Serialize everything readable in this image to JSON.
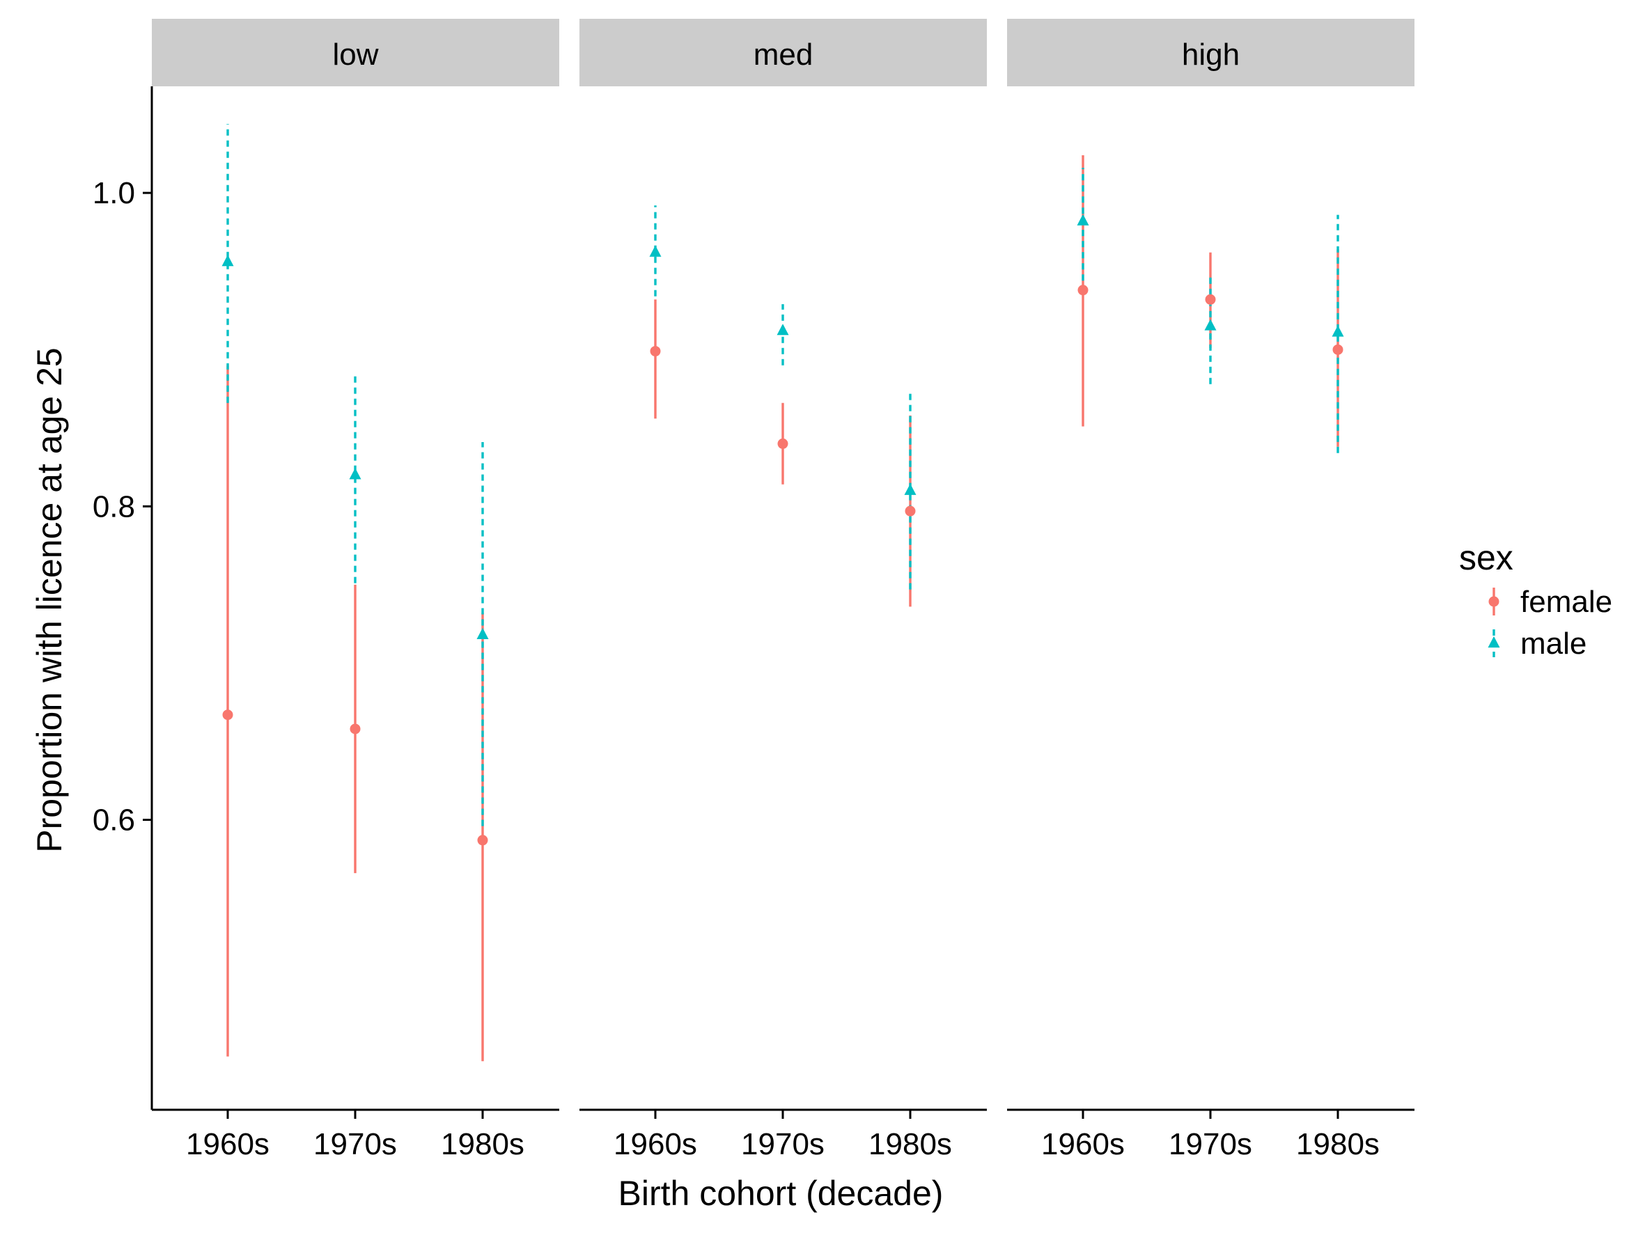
{
  "chart_data": {
    "type": "errorbar",
    "xlabel": "Birth cohort (decade)",
    "ylabel": "Proportion with licence at age 25",
    "ylim": [
      0.415,
      1.068
    ],
    "yticks": [
      "0.6",
      "0.8",
      "1.0"
    ],
    "categories": [
      "1960s",
      "1970s",
      "1980s"
    ],
    "grid": false,
    "legend": {
      "title": "sex",
      "placement": "right",
      "entries": [
        "female",
        "male"
      ]
    },
    "colors": {
      "female": "#F8766D",
      "male": "#00BFC4",
      "strip": "#CCCCCC"
    },
    "facets": [
      {
        "label": "low",
        "series": [
          {
            "name": "female",
            "marker": "circle",
            "line": "solid",
            "values": [
              0.667,
              0.658,
              0.587
            ],
            "lower": [
              0.449,
              0.566,
              0.446
            ],
            "upper": [
              0.89,
              0.75,
              0.732
            ]
          },
          {
            "name": "male",
            "marker": "triangle",
            "line": "dashed",
            "values": [
              0.956,
              0.82,
              0.718
            ],
            "lower": [
              0.866,
              0.751,
              0.596
            ],
            "upper": [
              1.044,
              0.886,
              0.841
            ]
          }
        ]
      },
      {
        "label": "med",
        "series": [
          {
            "name": "female",
            "marker": "circle",
            "line": "solid",
            "values": [
              0.899,
              0.84,
              0.797
            ],
            "lower": [
              0.856,
              0.814,
              0.736
            ],
            "upper": [
              0.932,
              0.866,
              0.858
            ]
          },
          {
            "name": "male",
            "marker": "triangle",
            "line": "dashed",
            "values": [
              0.962,
              0.912,
              0.81
            ],
            "lower": [
              0.934,
              0.89,
              0.747
            ],
            "upper": [
              0.992,
              0.929,
              0.873
            ]
          }
        ]
      },
      {
        "label": "high",
        "series": [
          {
            "name": "female",
            "marker": "circle",
            "line": "solid",
            "values": [
              0.938,
              0.932,
              0.9
            ],
            "lower": [
              0.851,
              0.901,
              0.838
            ],
            "upper": [
              1.024,
              0.962,
              0.964
            ]
          },
          {
            "name": "male",
            "marker": "triangle",
            "line": "dashed",
            "values": [
              0.982,
              0.915,
              0.911
            ],
            "lower": [
              0.944,
              0.878,
              0.834
            ],
            "upper": [
              1.016,
              0.948,
              0.986
            ]
          }
        ]
      }
    ]
  }
}
